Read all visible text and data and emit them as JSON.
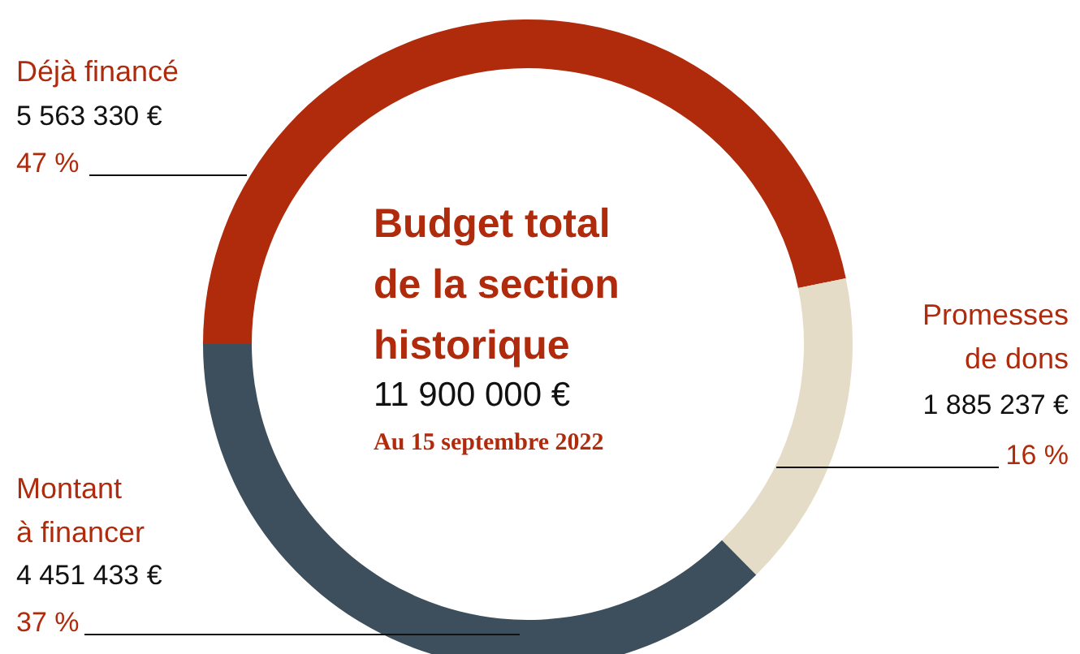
{
  "chart_data": {
    "type": "donut",
    "title": "Budget total de la section historique",
    "subtitle": "11 900 000 €",
    "categories": [
      "Déjà financé",
      "Promesses de dons",
      "Montant à financer"
    ],
    "values": [
      5563330,
      1885237,
      4451433
    ],
    "colors": [
      "#b02a0c",
      "#e5dcc8",
      "#3d4f5c"
    ],
    "value_labels": [
      "5 563 330 €",
      "1 885 237 €",
      "4 451 433 €"
    ],
    "annotations": [
      "47 %",
      "16 %",
      "37 %",
      "Au 15 septembre 2022"
    ]
  }
}
